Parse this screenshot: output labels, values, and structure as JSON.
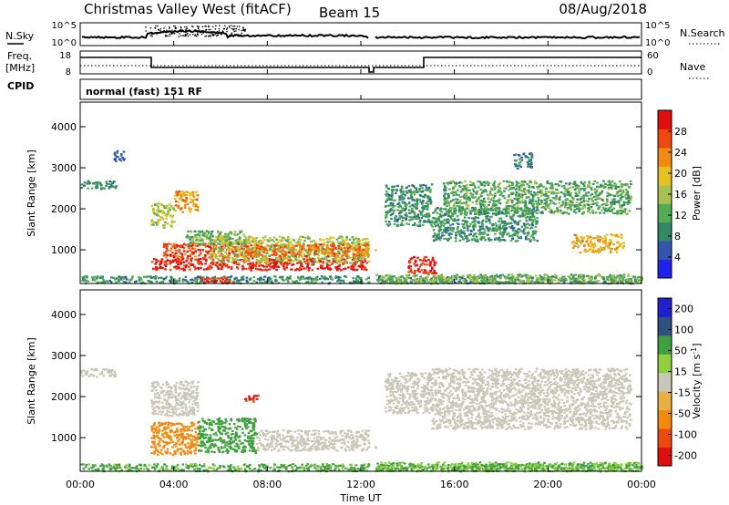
{
  "header": {
    "title": "Christmas Valley West (fitACF)",
    "beam": "Beam 15",
    "date": "08/Aug/2018"
  },
  "strips": {
    "nsky_label": "N.Sky",
    "nsearch_label": "N.Search",
    "freq_label_1": "Freq.",
    "freq_label_2": "[MHz]",
    "nave_label": "Nave",
    "cpid_label": "CPID",
    "cpid_value": "normal (fast) 151 RF",
    "noise_left_ticks": [
      "10^5",
      "10^0"
    ],
    "noise_right_ticks": [
      "10^5",
      "10^0"
    ],
    "freq_left_ticks": [
      "18",
      "8"
    ],
    "freq_right_ticks": [
      "60",
      "0"
    ]
  },
  "colors": {
    "power": [
      "#2222ee",
      "#3355aa",
      "#338866",
      "#55aa55",
      "#a8c050",
      "#e8c020",
      "#f08a10",
      "#ee4a10",
      "#e01010"
    ],
    "velocity": [
      "#e01010",
      "#ee4a10",
      "#f08a10",
      "#e8b040",
      "#c8c8b8",
      "#90d040",
      "#40a040",
      "#305080",
      "#2020cc"
    ]
  },
  "chart_data": [
    {
      "type": "heatmap",
      "name": "power-panel",
      "ylabel": "Slant Range [km]",
      "xlim_hours": [
        0,
        24
      ],
      "ylim_km": [
        180,
        4600
      ],
      "yticks": [
        1000,
        2000,
        3000,
        4000
      ],
      "ytick_labels": [
        "1000",
        "2000",
        "3000",
        "4000"
      ],
      "colorbar": {
        "label": "Power [dB]",
        "range": [
          0,
          32
        ],
        "ticks": [
          4,
          8,
          12,
          16,
          20,
          24,
          28
        ],
        "tick_labels": [
          "4",
          "8",
          "12",
          "16",
          "20",
          "24",
          "28"
        ]
      },
      "regions": [
        {
          "t": [
            0.0,
            24.0
          ],
          "r": [
            200,
            380
          ],
          "v": 10
        },
        {
          "t": [
            3.0,
            12.6
          ],
          "r": [
            520,
            820
          ],
          "v": 30
        },
        {
          "t": [
            3.5,
            7.5
          ],
          "r": [
            820,
            1180
          ],
          "v": 27
        },
        {
          "t": [
            5.5,
            12.6
          ],
          "r": [
            700,
            1350
          ],
          "v": 16
        },
        {
          "t": [
            7.0,
            12.3
          ],
          "r": [
            860,
            1160
          ],
          "v": 25
        },
        {
          "t": [
            4.5,
            7.0
          ],
          "r": [
            1150,
            1480
          ],
          "v": 13
        },
        {
          "t": [
            3.0,
            4.0
          ],
          "r": [
            1560,
            2150
          ],
          "v": 17
        },
        {
          "t": [
            4.0,
            5.0
          ],
          "r": [
            1920,
            2450
          ],
          "v": 22
        },
        {
          "t": [
            0.0,
            1.5
          ],
          "r": [
            2500,
            2700
          ],
          "v": 9
        },
        {
          "t": [
            1.4,
            1.9
          ],
          "r": [
            3180,
            3430
          ],
          "v": 7
        },
        {
          "t": [
            5.0,
            6.5
          ],
          "r": [
            200,
            350
          ],
          "v": 29
        },
        {
          "t": [
            13.0,
            15.0
          ],
          "r": [
            1600,
            2620
          ],
          "v": 10
        },
        {
          "t": [
            14.0,
            15.2
          ],
          "r": [
            450,
            850
          ],
          "v": 29
        },
        {
          "t": [
            15.0,
            19.5
          ],
          "r": [
            1230,
            2050
          ],
          "v": 10
        },
        {
          "t": [
            15.5,
            23.5
          ],
          "r": [
            1900,
            2700
          ],
          "v": 12
        },
        {
          "t": [
            21.0,
            23.2
          ],
          "r": [
            950,
            1400
          ],
          "v": 21
        },
        {
          "t": [
            18.5,
            19.3
          ],
          "r": [
            3000,
            3400
          ],
          "v": 8
        },
        {
          "t": [
            12.6,
            24.0
          ],
          "r": [
            200,
            420
          ],
          "v": 14
        }
      ]
    },
    {
      "type": "heatmap",
      "name": "velocity-panel",
      "ylabel": "Slant Range [km]",
      "xlabel": "Time UT",
      "xlim_hours": [
        0,
        24
      ],
      "xticks": [
        0,
        4,
        8,
        12,
        16,
        20,
        24
      ],
      "xtick_labels": [
        "00:00",
        "04:00",
        "08:00",
        "12:00",
        "16:00",
        "20:00",
        "00:00"
      ],
      "ylim_km": [
        180,
        4600
      ],
      "yticks": [
        1000,
        2000,
        3000,
        4000
      ],
      "ytick_labels": [
        "1000",
        "2000",
        "3000",
        "4000"
      ],
      "colorbar": {
        "label": "Velocity [m s^-1]",
        "ticks": [
          -200,
          -100,
          -50,
          -15,
          15,
          50,
          100,
          200
        ],
        "tick_labels": [
          "-200",
          "-100",
          "-50",
          "-15",
          "15",
          "50",
          "100",
          "200"
        ]
      },
      "regions": [
        {
          "t": [
            0.0,
            24.0
          ],
          "r": [
            200,
            380
          ],
          "v": 40
        },
        {
          "t": [
            3.0,
            5.0
          ],
          "r": [
            600,
            1400
          ],
          "v": -60
        },
        {
          "t": [
            5.0,
            7.5
          ],
          "r": [
            650,
            1500
          ],
          "v": 60
        },
        {
          "t": [
            7.5,
            12.6
          ],
          "r": [
            700,
            1200
          ],
          "v": 0
        },
        {
          "t": [
            3.0,
            5.0
          ],
          "r": [
            1550,
            2400
          ],
          "v": 0
        },
        {
          "t": [
            0.0,
            1.5
          ],
          "r": [
            2500,
            2700
          ],
          "v": 0
        },
        {
          "t": [
            7.0,
            7.6
          ],
          "r": [
            1900,
            2050
          ],
          "v": -150
        },
        {
          "t": [
            13.0,
            15.0
          ],
          "r": [
            1600,
            2600
          ],
          "v": 0
        },
        {
          "t": [
            15.0,
            23.5
          ],
          "r": [
            1230,
            2700
          ],
          "v": 0
        },
        {
          "t": [
            12.6,
            24.0
          ],
          "r": [
            200,
            420
          ],
          "v": 30
        }
      ]
    }
  ]
}
